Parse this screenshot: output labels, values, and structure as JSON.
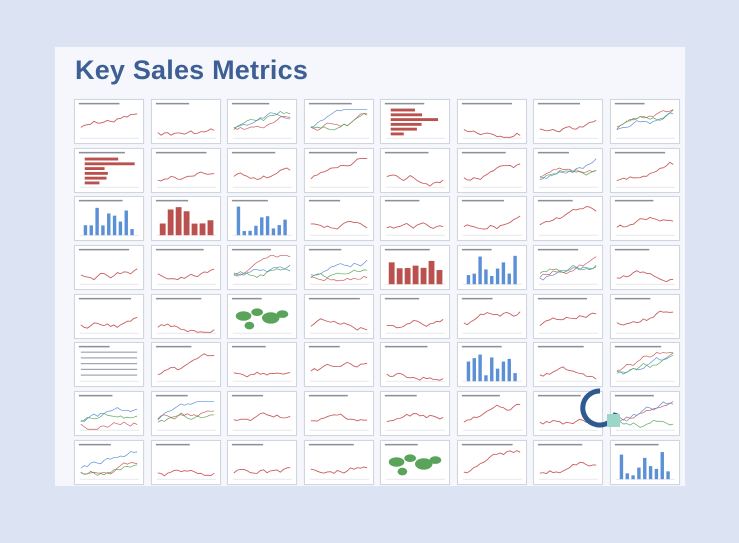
{
  "page": {
    "title": "Key Sales Metrics"
  },
  "colors": {
    "background": "#dce4f3",
    "card": "#f5f7fc",
    "title": "#3e5f93",
    "line_red": "#c9595a",
    "bar_red": "#b9514e",
    "blue": "#5b8fd6",
    "green": "#5aa35a",
    "orange": "#e39a43",
    "logo_ring": "#2f5a8f",
    "logo_square": "#9ad7c8"
  },
  "thumbnails": [
    {
      "kind": "line"
    },
    {
      "kind": "line"
    },
    {
      "kind": "multi"
    },
    {
      "kind": "multi"
    },
    {
      "kind": "hbar"
    },
    {
      "kind": "line"
    },
    {
      "kind": "line"
    },
    {
      "kind": "multi"
    },
    {
      "kind": "hbar"
    },
    {
      "kind": "line"
    },
    {
      "kind": "line"
    },
    {
      "kind": "line"
    },
    {
      "kind": "line"
    },
    {
      "kind": "line"
    },
    {
      "kind": "multi"
    },
    {
      "kind": "line"
    },
    {
      "kind": "bluebar"
    },
    {
      "kind": "bar"
    },
    {
      "kind": "bluebar"
    },
    {
      "kind": "line"
    },
    {
      "kind": "line"
    },
    {
      "kind": "line"
    },
    {
      "kind": "line"
    },
    {
      "kind": "line"
    },
    {
      "kind": "line"
    },
    {
      "kind": "line"
    },
    {
      "kind": "multi"
    },
    {
      "kind": "multi"
    },
    {
      "kind": "bar"
    },
    {
      "kind": "bluebar"
    },
    {
      "kind": "multi"
    },
    {
      "kind": "line"
    },
    {
      "kind": "line"
    },
    {
      "kind": "line"
    },
    {
      "kind": "map"
    },
    {
      "kind": "line"
    },
    {
      "kind": "line"
    },
    {
      "kind": "line"
    },
    {
      "kind": "line"
    },
    {
      "kind": "line"
    },
    {
      "kind": "table"
    },
    {
      "kind": "line"
    },
    {
      "kind": "line"
    },
    {
      "kind": "line"
    },
    {
      "kind": "line"
    },
    {
      "kind": "bluebar"
    },
    {
      "kind": "line"
    },
    {
      "kind": "multi"
    },
    {
      "kind": "multi"
    },
    {
      "kind": "multi"
    },
    {
      "kind": "line"
    },
    {
      "kind": "line"
    },
    {
      "kind": "line"
    },
    {
      "kind": "line"
    },
    {
      "kind": "line"
    },
    {
      "kind": "multi"
    },
    {
      "kind": "multi"
    },
    {
      "kind": "line"
    },
    {
      "kind": "line"
    },
    {
      "kind": "line"
    },
    {
      "kind": "map"
    },
    {
      "kind": "line"
    },
    {
      "kind": "line"
    },
    {
      "kind": "bluebar"
    }
  ]
}
